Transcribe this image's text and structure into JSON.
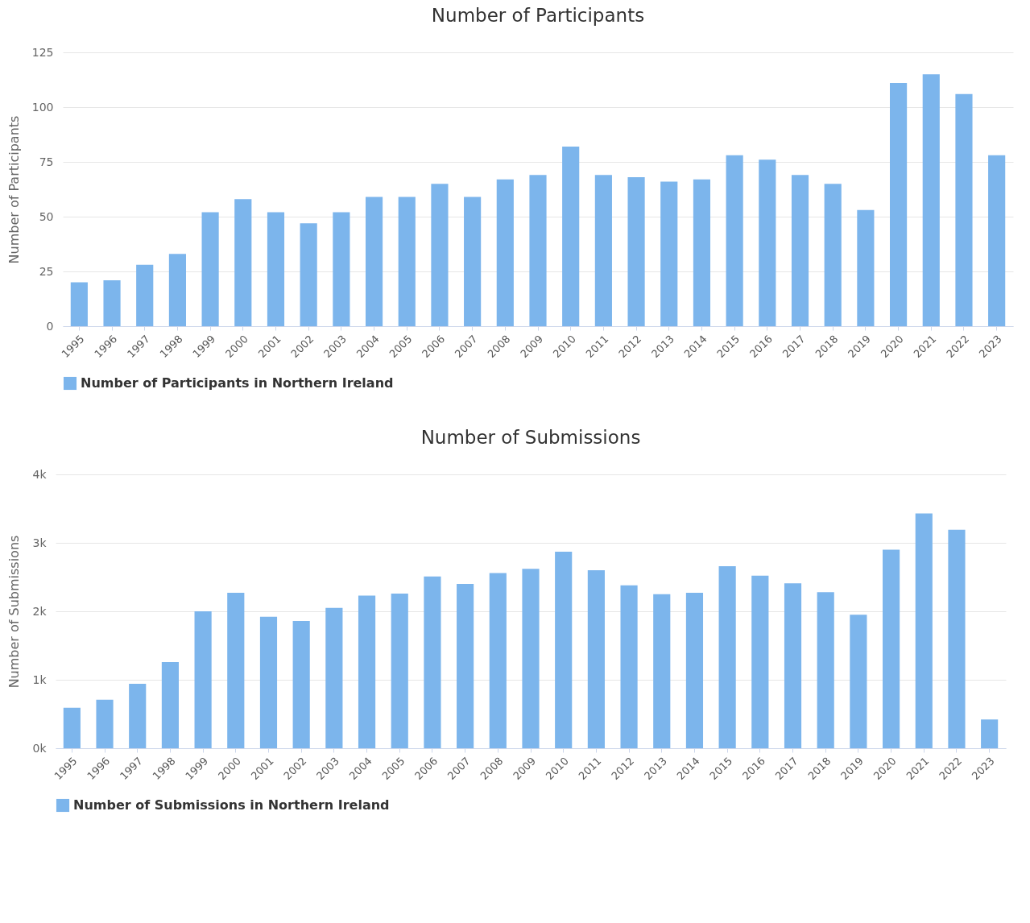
{
  "chart_data": [
    {
      "type": "bar",
      "title": "Number of Participants",
      "ylabel": "Number of Participants",
      "categories": [
        "1995",
        "1996",
        "1997",
        "1998",
        "1999",
        "2000",
        "2001",
        "2002",
        "2003",
        "2004",
        "2005",
        "2006",
        "2007",
        "2008",
        "2009",
        "2010",
        "2011",
        "2012",
        "2013",
        "2014",
        "2015",
        "2016",
        "2017",
        "2018",
        "2019",
        "2020",
        "2021",
        "2022",
        "2023"
      ],
      "series": [
        {
          "name": "Number of Participants in Northern Ireland",
          "color": "#7cb5ec",
          "values": [
            20,
            21,
            28,
            33,
            52,
            58,
            52,
            47,
            52,
            59,
            59,
            65,
            59,
            67,
            69,
            82,
            69,
            68,
            66,
            67,
            78,
            76,
            69,
            65,
            53,
            111,
            115,
            106,
            78
          ]
        }
      ],
      "ylim": [
        0,
        125
      ],
      "yticks": [
        0,
        25,
        50,
        75,
        100,
        125
      ],
      "grid": "y",
      "legend": "bottom"
    },
    {
      "type": "bar",
      "title": "Number of Submissions",
      "ylabel": "Number of Submissions",
      "categories": [
        "1995",
        "1996",
        "1997",
        "1998",
        "1999",
        "2000",
        "2001",
        "2002",
        "2003",
        "2004",
        "2005",
        "2006",
        "2007",
        "2008",
        "2009",
        "2010",
        "2011",
        "2012",
        "2013",
        "2014",
        "2015",
        "2016",
        "2017",
        "2018",
        "2019",
        "2020",
        "2021",
        "2022",
        "2023"
      ],
      "series": [
        {
          "name": "Number of Submissions in Northern Ireland",
          "color": "#7cb5ec",
          "values": [
            590,
            710,
            940,
            1260,
            2000,
            2270,
            1920,
            1860,
            2050,
            2230,
            2260,
            2510,
            2400,
            2560,
            2620,
            2870,
            2600,
            2380,
            2250,
            2270,
            2660,
            2520,
            2410,
            2280,
            1950,
            2900,
            3430,
            3190,
            420
          ]
        }
      ],
      "ylim": [
        0,
        4000
      ],
      "yticks": [
        {
          "value": 0,
          "label": "0k"
        },
        {
          "value": 1000,
          "label": "1k"
        },
        {
          "value": 2000,
          "label": "2k"
        },
        {
          "value": 3000,
          "label": "3k"
        },
        {
          "value": 4000,
          "label": "4k"
        }
      ],
      "grid": "y",
      "legend": "bottom"
    }
  ]
}
